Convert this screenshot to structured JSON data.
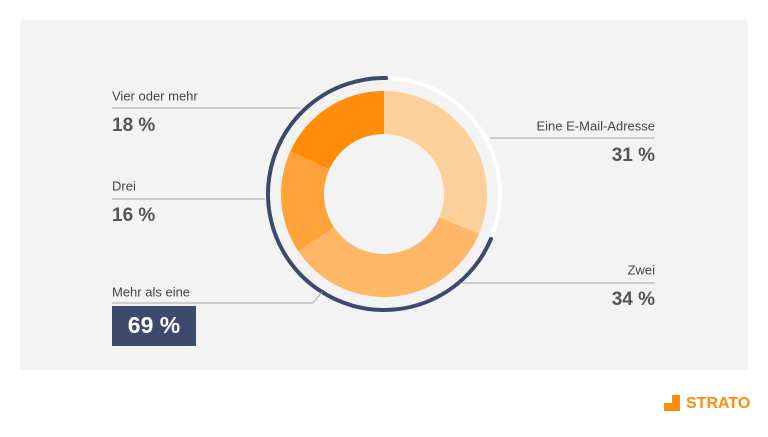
{
  "chart_data": {
    "type": "donut",
    "categories": [
      "Eine E-Mail-Adresse",
      "Zwei",
      "Drei",
      "Vier oder mehr"
    ],
    "values": [
      31,
      34,
      16,
      18
    ],
    "value_labels": [
      "31 %",
      "34 %",
      "16 %",
      "18 %"
    ],
    "colors": [
      "#fdd09b",
      "#ffb767",
      "#ffa23a",
      "#ff8c0a"
    ],
    "annotation": {
      "label": "Mehr als eine",
      "value": 69,
      "value_label": "69 %",
      "color": "#3d4a6b"
    }
  },
  "brand": "STRATO"
}
